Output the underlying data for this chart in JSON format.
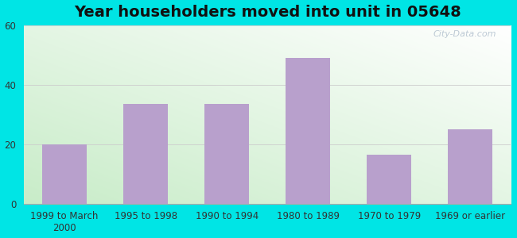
{
  "title": "Year householders moved into unit in 05648",
  "categories": [
    "1999 to March\n2000",
    "1995 to 1998",
    "1990 to 1994",
    "1980 to 1989",
    "1970 to 1979",
    "1969 or earlier"
  ],
  "values": [
    20,
    33.5,
    33.5,
    49,
    16.5,
    25
  ],
  "bar_color": "#b8a0cc",
  "background_outer": "#00e5e5",
  "grad_color_green": "#c8ecc8",
  "grad_color_white": "#ffffff",
  "ylim": [
    0,
    60
  ],
  "yticks": [
    0,
    20,
    40,
    60
  ],
  "title_fontsize": 14,
  "tick_fontsize": 8.5,
  "watermark": "City-Data.com"
}
